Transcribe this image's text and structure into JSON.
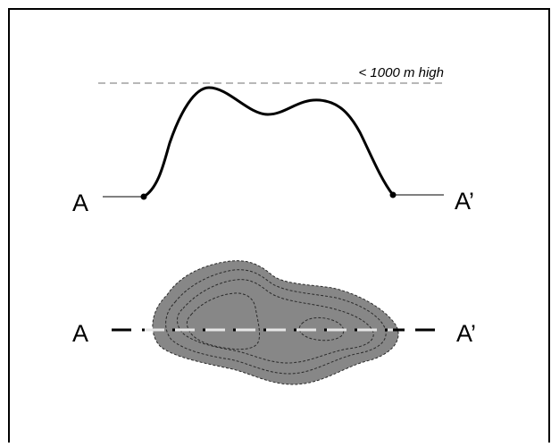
{
  "profile": {
    "height_note": "< 1000 m high",
    "label_start": "A",
    "label_end": "A’"
  },
  "map": {
    "label_start": "A",
    "label_end": "A’"
  },
  "colors": {
    "border": "#000000",
    "profile_line": "#000000",
    "baseline": "#808080",
    "height_guide": "#a0a0a0",
    "landmass_fill": "#878787",
    "contour_line": "#2a2a2a",
    "section_line_dark": "#000000",
    "section_line_light": "#e6e6e6"
  }
}
